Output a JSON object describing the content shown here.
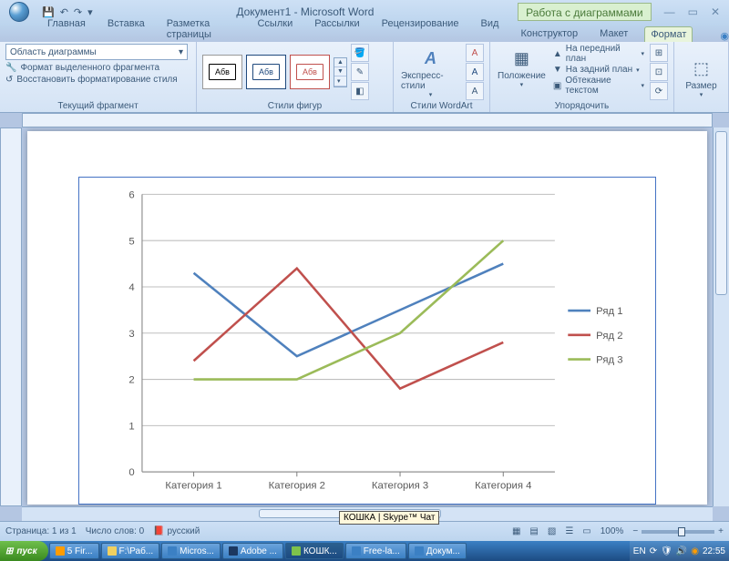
{
  "title": {
    "doc": "Документ1 - Microsoft Word",
    "tools": "Работа с диаграммами"
  },
  "tabs": {
    "left": [
      "Главная",
      "Вставка",
      "Разметка страницы",
      "Ссылки",
      "Рассылки",
      "Рецензирование",
      "Вид"
    ],
    "right": [
      "Конструктор",
      "Макет",
      "Формат"
    ],
    "active_right": "Формат"
  },
  "ribbon": {
    "selection": {
      "dropdown": "Область диаграммы",
      "format_sel": "Формат выделенного фрагмента",
      "reset": "Восстановить форматирование стиля",
      "label": "Текущий фрагмент"
    },
    "shapestyles": {
      "sample": "Абв",
      "label": "Стили фигур"
    },
    "wordart": {
      "btn": "Экспресс-стили",
      "label": "Стили WordArt"
    },
    "arrange": {
      "position": "Положение",
      "front": "На передний план",
      "back": "На задний план",
      "wrap": "Обтекание текстом",
      "label": "Упорядочить"
    },
    "size": {
      "btn": "Размер"
    }
  },
  "chart": {
    "type": "line",
    "categories": [
      "Категория 1",
      "Категория 2",
      "Категория 3",
      "Категория 4"
    ],
    "series": [
      {
        "name": "Ряд 1",
        "color": "#4f81bd",
        "values": [
          4.3,
          2.5,
          3.5,
          4.5
        ]
      },
      {
        "name": "Ряд 2",
        "color": "#c0504d",
        "values": [
          2.4,
          4.4,
          1.8,
          2.8
        ]
      },
      {
        "name": "Ряд 3",
        "color": "#9bbb59",
        "values": [
          2.0,
          2.0,
          3.0,
          5.0
        ]
      }
    ],
    "ylim": [
      0,
      6
    ],
    "ytick_step": 1,
    "grid_color": "#bfbfbf",
    "axis_color": "#808080",
    "text_color": "#595959",
    "line_width": 2.5,
    "font_size": 11
  },
  "statusbar": {
    "page": "Страница: 1 из 1",
    "words": "Число слов: 0",
    "lang": "русский",
    "zoom": "100%"
  },
  "taskbar": {
    "start": "пуск",
    "items": [
      {
        "label": "5 Fir...",
        "color": "#ff9c00"
      },
      {
        "label": "F:\\Раб...",
        "color": "#f0d060"
      },
      {
        "label": "Micros...",
        "color": "#3b80c4"
      },
      {
        "label": "Adobe ...",
        "color": "#1c3860"
      },
      {
        "label": "КОШК...",
        "color": "#7ec24b",
        "active": true
      },
      {
        "label": "Free-la...",
        "color": "#3b80c4"
      },
      {
        "label": "Докум...",
        "color": "#3b80c4"
      }
    ],
    "tray_lang": "EN",
    "clock": "22:55",
    "skype_tip": "КОШКА | Skype™ Чат"
  }
}
